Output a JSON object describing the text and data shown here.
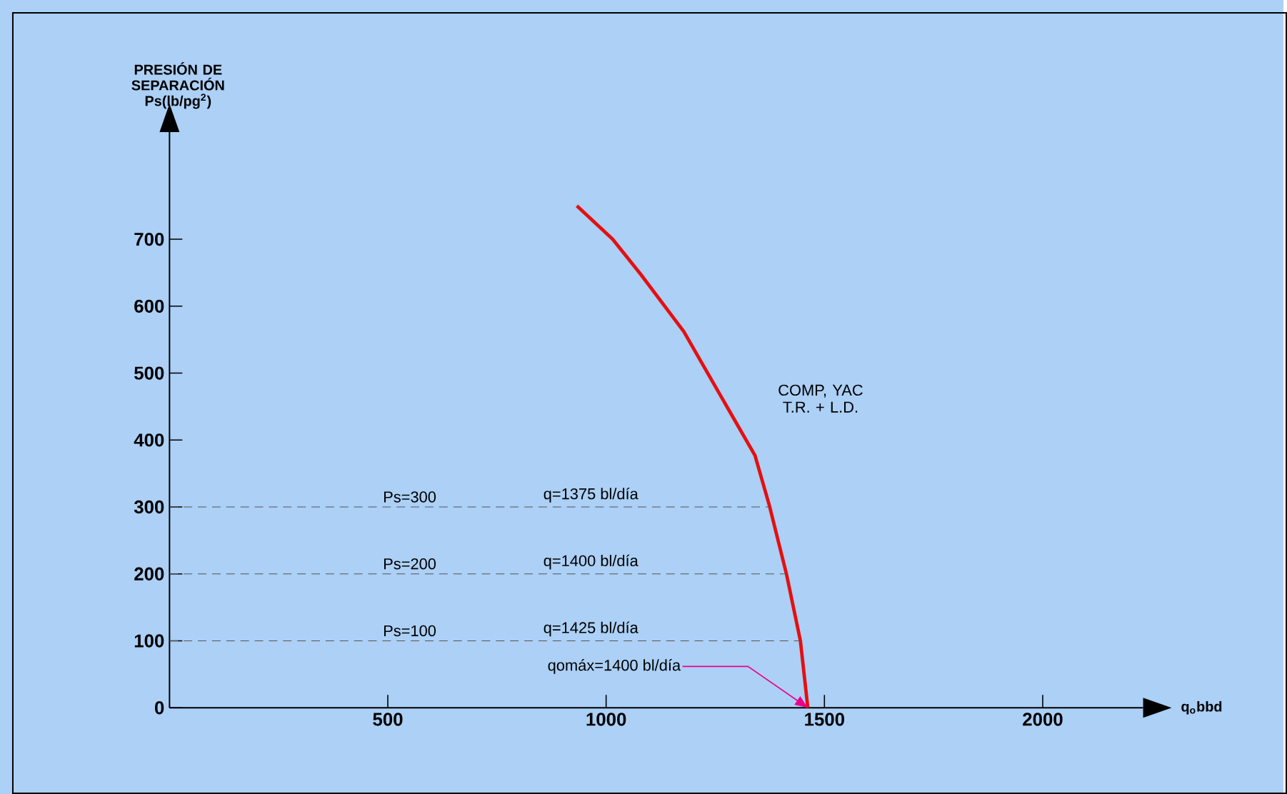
{
  "chart_data": {
    "type": "line",
    "xlabel": "q$_{o}$bbd",
    "ylabel": "PRESIÓN DE SEPARACIÓN Ps(lb/pg$^{2}$)",
    "xlim": [
      0,
      2230
    ],
    "ylim": [
      0,
      860
    ],
    "xticks": [
      500,
      1000,
      1500,
      2000
    ],
    "yticks": [
      0,
      100,
      200,
      300,
      400,
      500,
      600,
      700
    ],
    "series": [
      {
        "name": "COMP, YAC T.R. + L.D.",
        "color": "#e41010",
        "line_style": "solid",
        "x": [
          933,
          1015,
          1080,
          1178,
          1266,
          1341,
          1374,
          1413,
          1445,
          1462
        ],
        "values": [
          750,
          700,
          647,
          562,
          462,
          377,
          302,
          200,
          100,
          0
        ]
      },
      {
        "color": "#555555",
        "line_style": "dashed",
        "x": [
          0,
          1374
        ],
        "values": [
          300,
          300
        ]
      },
      {
        "color": "#555555",
        "line_style": "dashed",
        "x": [
          0,
          1413
        ],
        "values": [
          200,
          200
        ]
      },
      {
        "color": "#555555",
        "line_style": "dashed",
        "x": [
          0,
          1445
        ],
        "values": [
          100,
          100
        ]
      }
    ],
    "annotations": [
      {
        "text": "Ps=300",
        "x": 550,
        "y": 300
      },
      {
        "text": "q=1375 bl/día",
        "x": 965,
        "y": 300
      },
      {
        "text": "Ps=200",
        "x": 550,
        "y": 200
      },
      {
        "text": "q=1400 bl/día",
        "x": 965,
        "y": 200
      },
      {
        "text": "Ps=100",
        "x": 550,
        "y": 100
      },
      {
        "text": "q=1425 bl/día",
        "x": 965,
        "y": 100
      },
      {
        "text": "qomáx=1400 bl/día",
        "x": 1462,
        "y": 0
      }
    ]
  }
}
